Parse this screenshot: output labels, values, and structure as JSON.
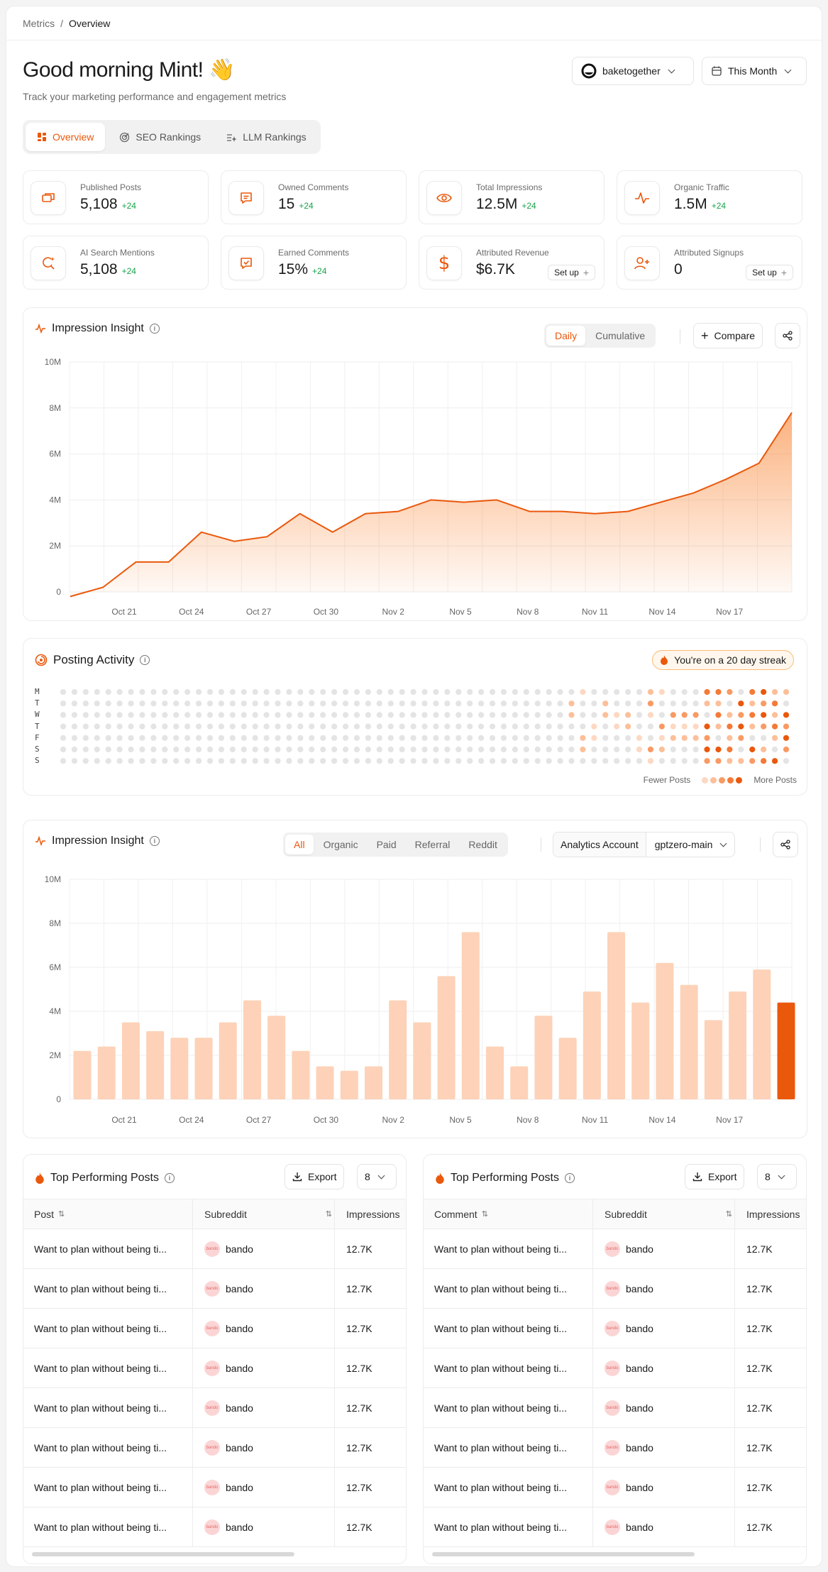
{
  "breadcrumb": {
    "parent": "Metrics",
    "separator": "/",
    "current": "Overview"
  },
  "greeting": {
    "title": "Good morning Mint! 👋",
    "subtitle": "Track your marketing performance and engagement metrics"
  },
  "header": {
    "account": "baketogether",
    "period": "This Month"
  },
  "tabs": [
    {
      "label": "Overview"
    },
    {
      "label": "SEO Rankings"
    },
    {
      "label": "LLM Rankings"
    }
  ],
  "stats": [
    {
      "label": "Published Posts",
      "value": "5,108",
      "delta": "+24",
      "icon": "posts-icon"
    },
    {
      "label": "Owned Comments",
      "value": "15",
      "delta": "+24",
      "icon": "comment-icon"
    },
    {
      "label": "Total Impressions",
      "value": "12.5M",
      "delta": "+24",
      "icon": "eye-icon"
    },
    {
      "label": "Organic Traffic",
      "value": "1.5M",
      "delta": "+24",
      "icon": "pulse-icon"
    },
    {
      "label": "AI Search Mentions",
      "value": "5,108",
      "delta": "+24",
      "icon": "ai-search-icon"
    },
    {
      "label": "Earned Comments",
      "value": "15%",
      "delta": "+24",
      "icon": "comment-check-icon"
    },
    {
      "label": "Attributed Revenue",
      "value": "$6.7K",
      "setup": "Set up",
      "icon": "dollar-icon"
    },
    {
      "label": "Attributed Signups",
      "value": "0",
      "setup": "Set up",
      "icon": "user-plus-icon"
    }
  ],
  "impression_line": {
    "title": "Impression Insight",
    "toggle": [
      "Daily",
      "Cumulative"
    ],
    "compare_label": "Compare"
  },
  "posting_activity": {
    "title": "Posting Activity",
    "streak": "You're on a 20 day streak",
    "days": [
      "M",
      "T",
      "W",
      "T",
      "F",
      "S",
      "S"
    ],
    "legend_fewer": "Fewer Posts",
    "legend_more": "More Posts"
  },
  "impression_bar": {
    "title": "Impression Insight",
    "filters": [
      "All",
      "Organic",
      "Paid",
      "Referral",
      "Reddit"
    ],
    "account_label": "Analytics Account",
    "account_value": "gptzero-main"
  },
  "chart_data": [
    {
      "type": "area",
      "y_ticks": [
        "10M",
        "8M",
        "6M",
        "4M",
        "2M",
        "0"
      ],
      "x_ticks": [
        "Oct 21",
        "Oct 24",
        "Oct 27",
        "Oct 30",
        "Nov 2",
        "Nov 5",
        "Nov 8",
        "Nov 11",
        "Nov 14",
        "Nov 17"
      ],
      "ylim": [
        0,
        10
      ],
      "y_unit": "M",
      "values": [
        -0.2,
        0.2,
        1.3,
        1.3,
        2.6,
        2.2,
        2.4,
        3.4,
        2.6,
        3.4,
        3.5,
        4.0,
        3.9,
        4.0,
        3.5,
        3.5,
        3.4,
        3.5,
        3.9,
        4.3,
        4.9,
        5.6,
        7.8
      ],
      "color": "#ea580c"
    },
    {
      "type": "bar",
      "y_ticks": [
        "10M",
        "8M",
        "6M",
        "4M",
        "2M",
        "0"
      ],
      "x_ticks": [
        "Oct 21",
        "Oct 24",
        "Oct 27",
        "Oct 30",
        "Nov 2",
        "Nov 5",
        "Nov 8",
        "Nov 11",
        "Nov 14",
        "Nov 17"
      ],
      "ylim": [
        0,
        10
      ],
      "y_unit": "M",
      "values": [
        2.2,
        2.4,
        3.5,
        3.1,
        2.8,
        2.8,
        3.5,
        4.5,
        3.8,
        2.2,
        1.5,
        1.3,
        1.5,
        4.5,
        3.5,
        5.6,
        7.6,
        2.4,
        1.5,
        3.8,
        2.8,
        4.9,
        7.6,
        4.4,
        6.2,
        5.2,
        3.6,
        4.9,
        5.9,
        4.4
      ],
      "highlight_last": true,
      "color": "#ea580c",
      "light_color": "#fdd2b8"
    }
  ],
  "tables": [
    {
      "title": "Top Performing Posts",
      "export_label": "Export",
      "count": "8",
      "columns": [
        "Post",
        "Subreddit",
        "Impressions"
      ],
      "rows": [
        {
          "text": "Want to plan without being ti...",
          "sub": "bando",
          "imp": "12.7K"
        },
        {
          "text": "Want to plan without being ti...",
          "sub": "bando",
          "imp": "12.7K"
        },
        {
          "text": "Want to plan without being ti...",
          "sub": "bando",
          "imp": "12.7K"
        },
        {
          "text": "Want to plan without being ti...",
          "sub": "bando",
          "imp": "12.7K"
        },
        {
          "text": "Want to plan without being ti...",
          "sub": "bando",
          "imp": "12.7K"
        },
        {
          "text": "Want to plan without being ti...",
          "sub": "bando",
          "imp": "12.7K"
        },
        {
          "text": "Want to plan without being ti...",
          "sub": "bando",
          "imp": "12.7K"
        },
        {
          "text": "Want to plan without being ti...",
          "sub": "bando",
          "imp": "12.7K"
        }
      ]
    },
    {
      "title": "Top Performing Posts",
      "export_label": "Export",
      "count": "8",
      "columns": [
        "Comment",
        "Subreddit",
        "Impressions"
      ],
      "rows": [
        {
          "text": "Want to plan without being ti...",
          "sub": "bando",
          "imp": "12.7K"
        },
        {
          "text": "Want to plan without being ti...",
          "sub": "bando",
          "imp": "12.7K"
        },
        {
          "text": "Want to plan without being ti...",
          "sub": "bando",
          "imp": "12.7K"
        },
        {
          "text": "Want to plan without being ti...",
          "sub": "bando",
          "imp": "12.7K"
        },
        {
          "text": "Want to plan without being ti...",
          "sub": "bando",
          "imp": "12.7K"
        },
        {
          "text": "Want to plan without being ti...",
          "sub": "bando",
          "imp": "12.7K"
        },
        {
          "text": "Want to plan without being ti...",
          "sub": "bando",
          "imp": "12.7K"
        },
        {
          "text": "Want to plan without being ti...",
          "sub": "bando",
          "imp": "12.7K"
        }
      ]
    }
  ],
  "avatar_text": "bando"
}
